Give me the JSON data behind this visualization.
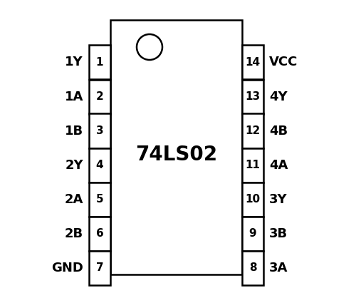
{
  "chip_label": "74LS02",
  "chip_fill": "#ffffff",
  "line_color": "#000000",
  "fill_color": "#ffffff",
  "text_color": "#000000",
  "background_color": "#ffffff",
  "chip_label_fontsize": 20,
  "pin_number_fontsize": 11,
  "pin_label_fontsize": 13,
  "left_pins": [
    {
      "number": "1",
      "label": "1Y"
    },
    {
      "number": "2",
      "label": "1A"
    },
    {
      "number": "3",
      "label": "1B"
    },
    {
      "number": "4",
      "label": "2Y"
    },
    {
      "number": "5",
      "label": "2A"
    },
    {
      "number": "6",
      "label": "2B"
    },
    {
      "number": "7",
      "label": "GND"
    }
  ],
  "right_pins": [
    {
      "number": "14",
      "label": "VCC"
    },
    {
      "number": "13",
      "label": "4Y"
    },
    {
      "number": "12",
      "label": "4B"
    },
    {
      "number": "11",
      "label": "4A"
    },
    {
      "number": "10",
      "label": "3Y"
    },
    {
      "number": "9",
      "label": "3B"
    },
    {
      "number": "8",
      "label": "3A"
    }
  ]
}
